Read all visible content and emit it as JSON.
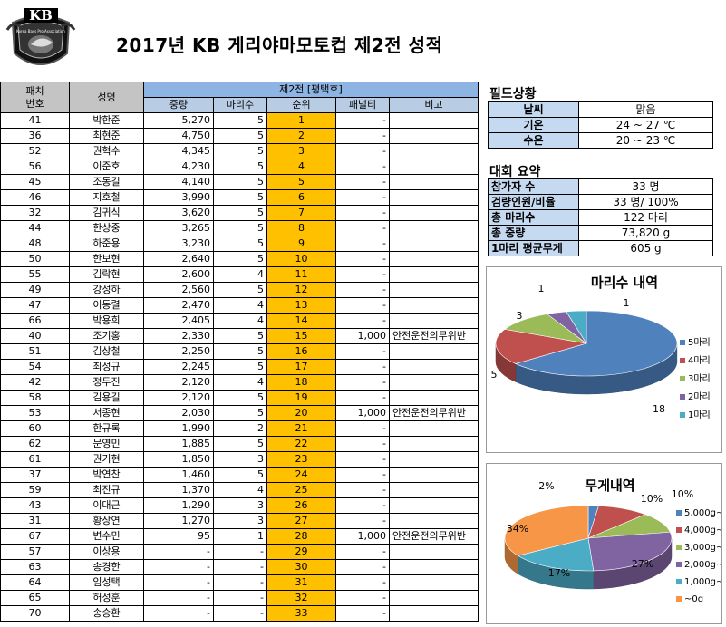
{
  "logo": {
    "letters": "KB",
    "ribbon_text": "Korea Bass Pro Association"
  },
  "title": "2017년  KB  게리야마모토컵 제2전 성적",
  "table": {
    "col_player_no": "패치\n번호",
    "col_name": "성명",
    "group_header": "제2전 [평택호]",
    "col_weight": "중량",
    "col_count": "마리수",
    "col_rank": "순위",
    "col_penalty": "패널티",
    "col_note": "비고",
    "rows": [
      {
        "no": "41",
        "name": "박한준",
        "weight": "5,270",
        "count": "5",
        "rank": "1",
        "penalty": "-",
        "note": ""
      },
      {
        "no": "36",
        "name": "최현준",
        "weight": "4,750",
        "count": "5",
        "rank": "2",
        "penalty": "-",
        "note": ""
      },
      {
        "no": "52",
        "name": "권혁수",
        "weight": "4,345",
        "count": "5",
        "rank": "3",
        "penalty": "-",
        "note": ""
      },
      {
        "no": "56",
        "name": "이준호",
        "weight": "4,230",
        "count": "5",
        "rank": "4",
        "penalty": "-",
        "note": ""
      },
      {
        "no": "45",
        "name": "조동길",
        "weight": "4,140",
        "count": "5",
        "rank": "5",
        "penalty": "-",
        "note": ""
      },
      {
        "no": "46",
        "name": "지호철",
        "weight": "3,990",
        "count": "5",
        "rank": "6",
        "penalty": "-",
        "note": ""
      },
      {
        "no": "32",
        "name": "김귀식",
        "weight": "3,620",
        "count": "5",
        "rank": "7",
        "penalty": "-",
        "note": ""
      },
      {
        "no": "44",
        "name": "한상중",
        "weight": "3,265",
        "count": "5",
        "rank": "8",
        "penalty": "-",
        "note": ""
      },
      {
        "no": "48",
        "name": "하준용",
        "weight": "3,230",
        "count": "5",
        "rank": "9",
        "penalty": "-",
        "note": ""
      },
      {
        "no": "50",
        "name": "한보현",
        "weight": "2,640",
        "count": "5",
        "rank": "10",
        "penalty": "-",
        "note": ""
      },
      {
        "no": "55",
        "name": "김락현",
        "weight": "2,600",
        "count": "4",
        "rank": "11",
        "penalty": "-",
        "note": ""
      },
      {
        "no": "49",
        "name": "강성하",
        "weight": "2,560",
        "count": "5",
        "rank": "12",
        "penalty": "-",
        "note": ""
      },
      {
        "no": "47",
        "name": "이동렬",
        "weight": "2,470",
        "count": "4",
        "rank": "13",
        "penalty": "-",
        "note": ""
      },
      {
        "no": "66",
        "name": "박용희",
        "weight": "2,405",
        "count": "4",
        "rank": "14",
        "penalty": "-",
        "note": ""
      },
      {
        "no": "40",
        "name": "조기홍",
        "weight": "2,330",
        "count": "5",
        "rank": "15",
        "penalty": "1,000",
        "note": "안전운전의무위반"
      },
      {
        "no": "51",
        "name": "김상철",
        "weight": "2,250",
        "count": "5",
        "rank": "16",
        "penalty": "-",
        "note": ""
      },
      {
        "no": "54",
        "name": "최성규",
        "weight": "2,245",
        "count": "5",
        "rank": "17",
        "penalty": "-",
        "note": ""
      },
      {
        "no": "42",
        "name": "정두진",
        "weight": "2,120",
        "count": "4",
        "rank": "18",
        "penalty": "-",
        "note": ""
      },
      {
        "no": "58",
        "name": "김용길",
        "weight": "2,120",
        "count": "5",
        "rank": "19",
        "penalty": "-",
        "note": ""
      },
      {
        "no": "53",
        "name": "서종현",
        "weight": "2,030",
        "count": "5",
        "rank": "20",
        "penalty": "1,000",
        "note": "안전운전의무위반"
      },
      {
        "no": "60",
        "name": "한규록",
        "weight": "1,990",
        "count": "2",
        "rank": "21",
        "penalty": "-",
        "note": ""
      },
      {
        "no": "62",
        "name": "문영민",
        "weight": "1,885",
        "count": "5",
        "rank": "22",
        "penalty": "-",
        "note": ""
      },
      {
        "no": "61",
        "name": "권기현",
        "weight": "1,850",
        "count": "3",
        "rank": "23",
        "penalty": "-",
        "note": ""
      },
      {
        "no": "37",
        "name": "박연찬",
        "weight": "1,460",
        "count": "5",
        "rank": "24",
        "penalty": "-",
        "note": ""
      },
      {
        "no": "59",
        "name": "최진규",
        "weight": "1,370",
        "count": "4",
        "rank": "25",
        "penalty": "-",
        "note": ""
      },
      {
        "no": "43",
        "name": "이대근",
        "weight": "1,290",
        "count": "3",
        "rank": "26",
        "penalty": "-",
        "note": ""
      },
      {
        "no": "31",
        "name": "황상연",
        "weight": "1,270",
        "count": "3",
        "rank": "27",
        "penalty": "-",
        "note": ""
      },
      {
        "no": "67",
        "name": "변수민",
        "weight": "95",
        "count": "1",
        "rank": "28",
        "penalty": "1,000",
        "note": "안전운전의무위반"
      },
      {
        "no": "57",
        "name": "이상용",
        "weight": "-",
        "count": "-",
        "rank": "29",
        "penalty": "-",
        "note": ""
      },
      {
        "no": "63",
        "name": "송경한",
        "weight": "-",
        "count": "-",
        "rank": "30",
        "penalty": "-",
        "note": ""
      },
      {
        "no": "64",
        "name": "임성택",
        "weight": "-",
        "count": "-",
        "rank": "31",
        "penalty": "-",
        "note": ""
      },
      {
        "no": "65",
        "name": "허성훈",
        "weight": "-",
        "count": "-",
        "rank": "32",
        "penalty": "-",
        "note": ""
      },
      {
        "no": "70",
        "name": "송승환",
        "weight": "-",
        "count": "-",
        "rank": "33",
        "penalty": "-",
        "note": ""
      }
    ]
  },
  "field": {
    "title": "필드상황",
    "rows": [
      {
        "label": "날씨",
        "value": "맑음"
      },
      {
        "label": "기온",
        "value": "24 ~ 27 ℃"
      },
      {
        "label": "수온",
        "value": "20 ~ 23 ℃"
      }
    ]
  },
  "summary": {
    "title": "대회 요약",
    "rows": [
      {
        "label": "참가자 수",
        "value": "33 명"
      },
      {
        "label": "검량인원/비율",
        "value": "33 명/ 100%"
      },
      {
        "label": "총 마리수",
        "value": "122 마리"
      },
      {
        "label": "총 중량",
        "value": "73,820 g"
      },
      {
        "label": "1마리 평균무게",
        "value": "605 g"
      }
    ]
  },
  "colors": {
    "blue": "#4f81bd",
    "red": "#c0504d",
    "green": "#9bbb59",
    "purple": "#8064a2",
    "teal": "#4bacc6",
    "orange": "#f79646",
    "rank_fill": "#ffc000"
  },
  "chart_data": [
    {
      "type": "pie",
      "title": "마리수 내역",
      "categories": [
        "5마리",
        "4마리",
        "3마리",
        "2마리",
        "1마리"
      ],
      "values": [
        18,
        5,
        3,
        1,
        1
      ],
      "data_labels": [
        "18",
        "5",
        "3",
        "1",
        "1"
      ],
      "colors": [
        "#4f81bd",
        "#c0504d",
        "#9bbb59",
        "#8064a2",
        "#4bacc6"
      ],
      "legend": "right"
    },
    {
      "type": "pie",
      "title": "무게내역",
      "categories": [
        "5,000g~",
        "4,000g~",
        "3,000g~",
        "2,000g~",
        "1,000g~",
        "~0g"
      ],
      "values": [
        2,
        10,
        10,
        27,
        17,
        34
      ],
      "data_labels": [
        "2%",
        "10%",
        "10%",
        "27%",
        "17%",
        "34%"
      ],
      "colors": [
        "#4f81bd",
        "#c0504d",
        "#9bbb59",
        "#8064a2",
        "#4bacc6",
        "#f79646"
      ],
      "legend": "right"
    }
  ]
}
